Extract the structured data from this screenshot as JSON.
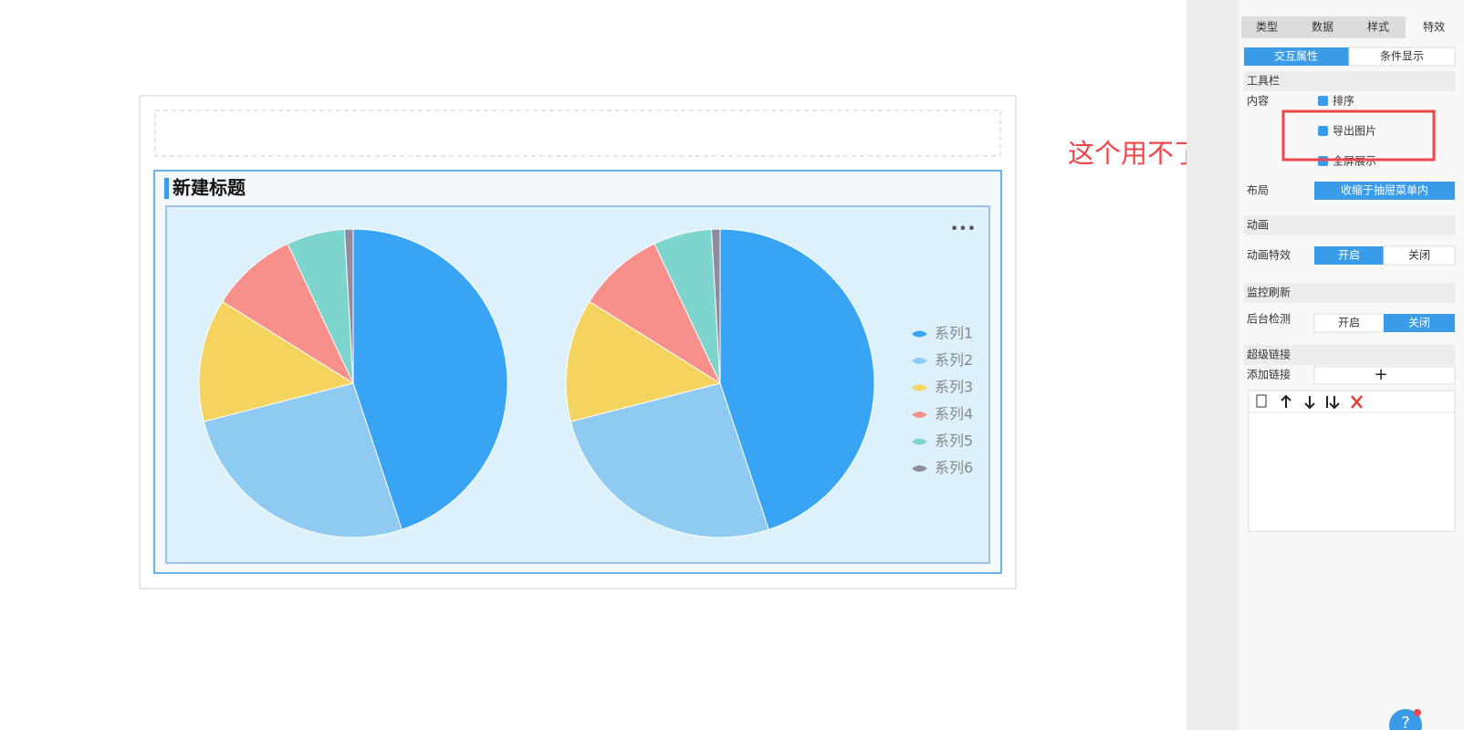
{
  "chart_data": {
    "type": "pie",
    "title": "新建标题",
    "categories": [
      "系列1",
      "系列2",
      "系列3",
      "系列4",
      "系列5",
      "系列6"
    ],
    "colors": [
      "#3aa4f4",
      "#8ecaf1",
      "#f4d35e",
      "#f78f8b",
      "#7dd5cd",
      "#8f8ba0"
    ],
    "series": [
      {
        "values": [
          44.9,
          26.1,
          12.9,
          9.1,
          6.1,
          0.9
        ]
      },
      {
        "values": [
          44.9,
          26.1,
          12.9,
          9.1,
          6.1,
          0.9
        ]
      }
    ],
    "legend": "right"
  },
  "annotation": "这个用不了",
  "panel": {
    "tabs": [
      "类型",
      "数据",
      "样式",
      "特效"
    ],
    "subtabs": [
      "交互属性",
      "条件显示"
    ],
    "toolbar": {
      "section": "工具栏",
      "content_label": "内容",
      "options": [
        "排序",
        "导出图片",
        "全屏展示"
      ],
      "layout_label": "布局",
      "layout_value": "收缩于抽屉菜单内"
    },
    "animation": {
      "section": "动画",
      "label": "动画特效",
      "on": "开启",
      "off": "关闭"
    },
    "refresh": {
      "section": "监控刷新",
      "label": "后台检测",
      "on": "开启",
      "off": "关闭"
    },
    "link": {
      "section": "超级链接",
      "label": "添加链接",
      "add": "+"
    },
    "help": "?"
  }
}
